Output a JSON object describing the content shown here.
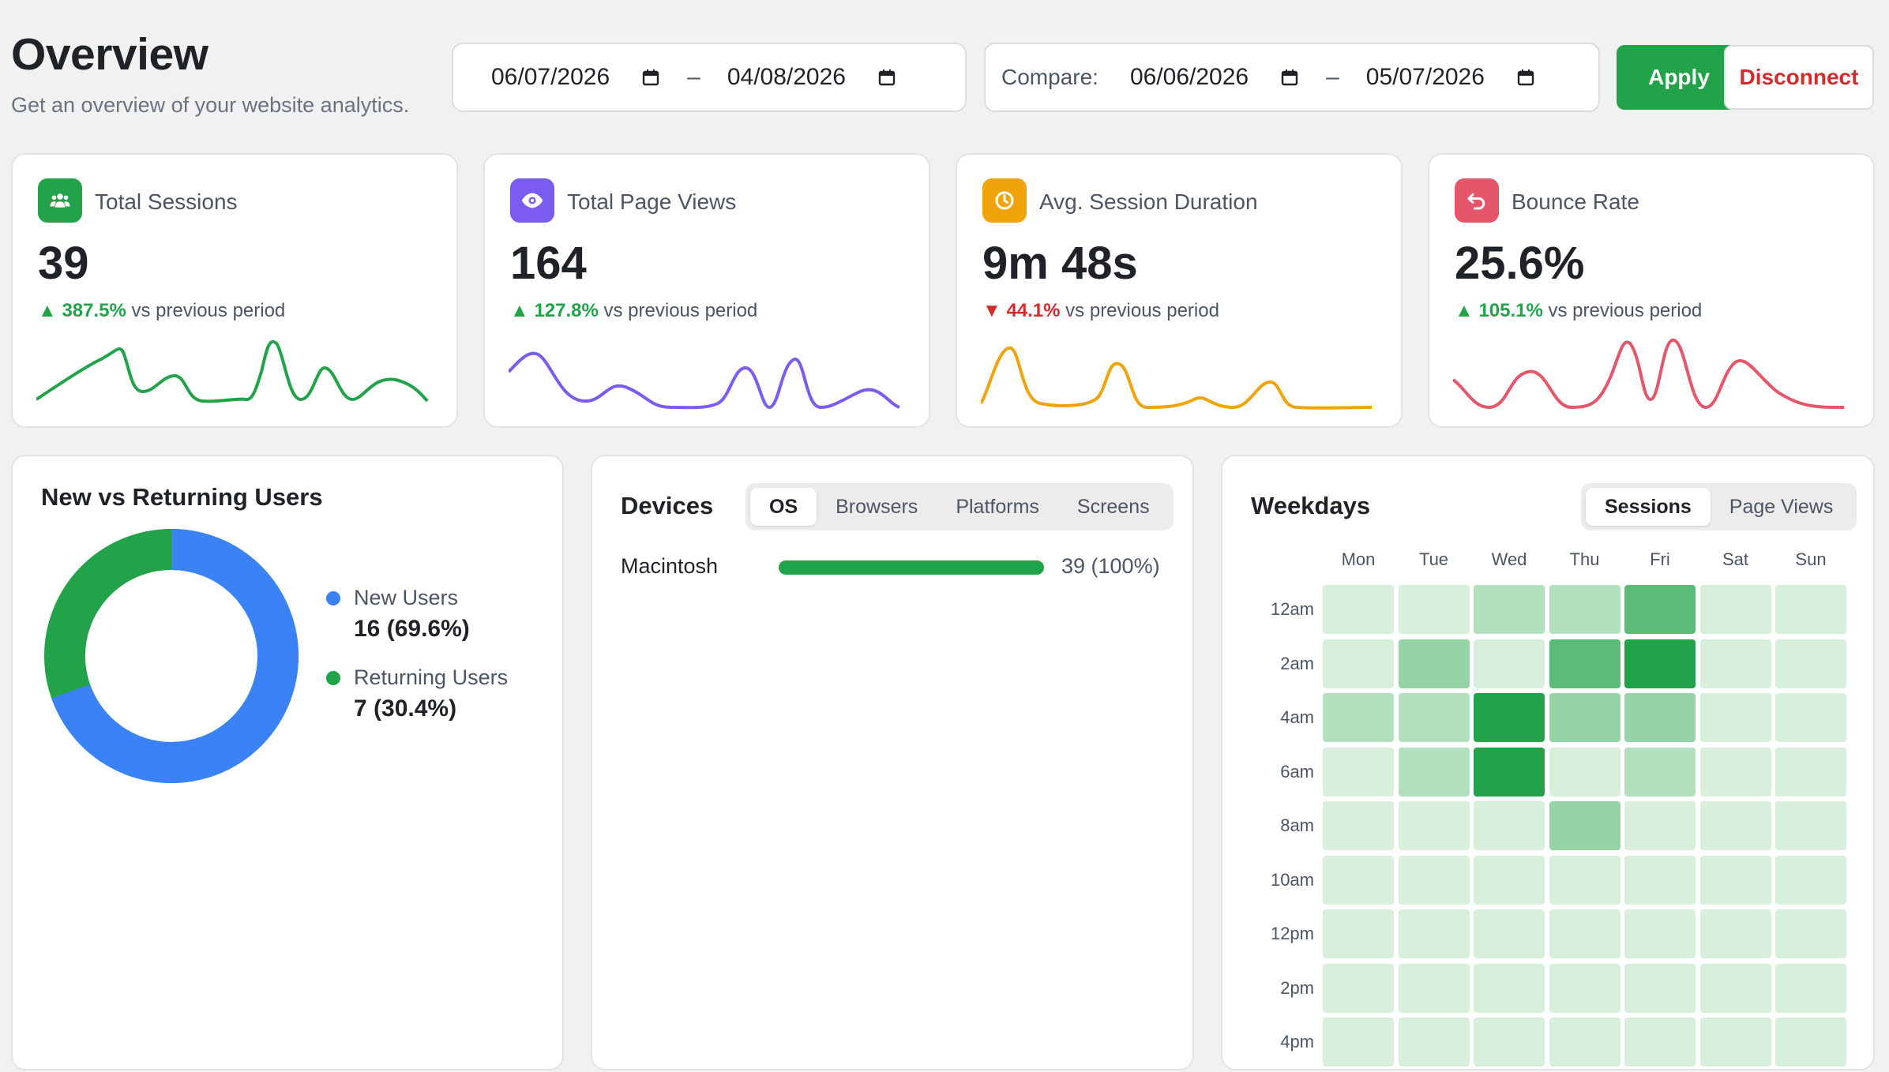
{
  "header": {
    "title": "Overview",
    "subtitle": "Get an overview of your website analytics.",
    "range_start": "06/07/2026",
    "range_end": "04/08/2026",
    "compare_label": "Compare:",
    "compare_start": "06/06/2026",
    "compare_end": "05/07/2026",
    "separator": "–",
    "apply_label": "Apply",
    "disconnect_label": "Disconnect"
  },
  "stats": [
    {
      "label": "Total Sessions",
      "value": "39",
      "delta": "387.5%",
      "direction": "up",
      "suffix": "vs previous period",
      "color": "#23a349",
      "icon": "users-icon"
    },
    {
      "label": "Total Page Views",
      "value": "164",
      "delta": "127.8%",
      "direction": "up",
      "suffix": "vs previous period",
      "color": "#7c5cf0",
      "icon": "eye-icon"
    },
    {
      "label": "Avg. Session Duration",
      "value": "9m 48s",
      "delta": "44.1%",
      "direction": "down",
      "suffix": "vs previous period",
      "color": "#f0a30a",
      "icon": "clock-icon"
    },
    {
      "label": "Bounce Rate",
      "value": "25.6%",
      "delta": "105.1%",
      "direction": "up",
      "suffix": "vs previous period",
      "color": "#e5566a",
      "icon": "return-icon"
    }
  ],
  "users": {
    "title": "New vs Returning Users",
    "items": [
      {
        "name": "New Users",
        "value": "16 (69.6%)",
        "color": "#3b82f6"
      },
      {
        "name": "Returning Users",
        "value": "7 (30.4%)",
        "color": "#23a349"
      }
    ]
  },
  "devices": {
    "title": "Devices",
    "tabs": [
      "OS",
      "Browsers",
      "Platforms",
      "Screens"
    ],
    "active_tab": "OS",
    "rows": [
      {
        "name": "Macintosh",
        "value": "39 (100%)",
        "share": 1.0
      }
    ]
  },
  "weekdays": {
    "title": "Weekdays",
    "tabs": [
      "Sessions",
      "Page Views"
    ],
    "active_tab": "Sessions",
    "days": [
      "Mon",
      "Tue",
      "Wed",
      "Thu",
      "Fri",
      "Sat",
      "Sun"
    ],
    "hours": [
      "12am",
      "2am",
      "4am",
      "6am",
      "8am",
      "10am",
      "12pm",
      "2pm",
      "4pm"
    ]
  },
  "chart_data": {
    "type": "heatmap",
    "title": "Weekdays",
    "x": [
      "Mon",
      "Tue",
      "Wed",
      "Thu",
      "Fri",
      "Sat",
      "Sun"
    ],
    "y": [
      "12am",
      "2am",
      "4am",
      "6am",
      "8am",
      "10am",
      "12pm",
      "2pm",
      "4pm"
    ],
    "intensity": [
      [
        0.05,
        0.05,
        0.25,
        0.25,
        0.7,
        0.05,
        0.05
      ],
      [
        0.05,
        0.4,
        0.05,
        0.7,
        1.0,
        0.05,
        0.05
      ],
      [
        0.25,
        0.25,
        1.0,
        0.4,
        0.4,
        0.05,
        0.05
      ],
      [
        0.05,
        0.25,
        1.0,
        0.05,
        0.25,
        0.05,
        0.05
      ],
      [
        0.05,
        0.05,
        0.05,
        0.4,
        0.05,
        0.05,
        0.05
      ],
      [
        0.05,
        0.05,
        0.05,
        0.05,
        0.05,
        0.05,
        0.05
      ],
      [
        0.05,
        0.05,
        0.05,
        0.05,
        0.05,
        0.05,
        0.05
      ],
      [
        0.05,
        0.05,
        0.05,
        0.05,
        0.05,
        0.05,
        0.05
      ],
      [
        0.05,
        0.05,
        0.05,
        0.05,
        0.05,
        0.05,
        0.05
      ]
    ]
  }
}
